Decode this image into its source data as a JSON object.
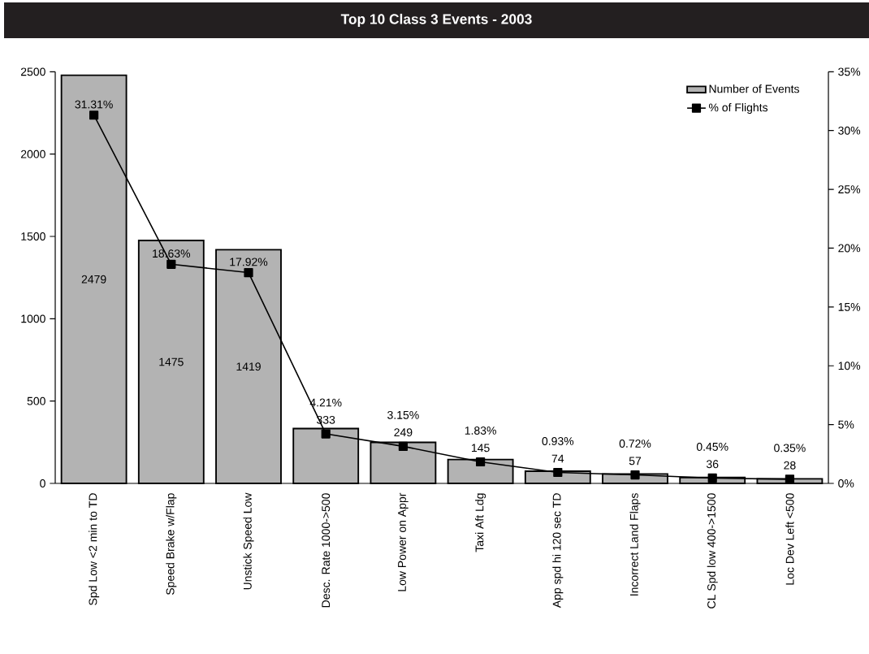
{
  "chart_data": {
    "type": "bar",
    "title": "Top 10 Class 3 Events - 2003",
    "categories": [
      "Spd Low <2 min to TD",
      "Speed Brake w/Flap",
      "Unstick Speed Low",
      "Desc. Rate 1000->500",
      "Low Power on Appr",
      "Taxi Aft Ldg",
      "App spd hi 120 sec TD",
      "Incorrect Land Flaps",
      "CL Spd low 400->1500",
      "Loc Dev Left <500"
    ],
    "series": [
      {
        "name": "Number of Events",
        "color": "#b3b3b3",
        "values": [
          2479,
          1475,
          1419,
          333,
          249,
          145,
          74,
          57,
          36,
          28
        ],
        "value_labels": [
          "2479",
          "1475",
          "1419",
          "333",
          "249",
          "145",
          "74",
          "57",
          "36",
          "28"
        ]
      },
      {
        "name": "% of Flights",
        "type": "line",
        "axis": "y2",
        "color": "#000000",
        "marker": "square",
        "values": [
          31.31,
          18.63,
          17.92,
          4.21,
          3.15,
          1.83,
          0.93,
          0.72,
          0.45,
          0.35
        ],
        "value_labels": [
          "31.31%",
          "18.63%",
          "17.92%",
          "4.21%",
          "3.15%",
          "1.83%",
          "0.93%",
          "0.72%",
          "0.45%",
          "0.35%"
        ]
      }
    ],
    "ylim": [
      0,
      2500
    ],
    "yticks": [
      0,
      500,
      1000,
      1500,
      2000,
      2500
    ],
    "y2lim": [
      0,
      35
    ],
    "y2ticks": [
      {
        "value": 0,
        "label": "0%"
      },
      {
        "value": 5,
        "label": "5%"
      },
      {
        "value": 10,
        "label": "10%"
      },
      {
        "value": 15,
        "label": "15%"
      },
      {
        "value": 20,
        "label": "20%"
      },
      {
        "value": 25,
        "label": "25%"
      },
      {
        "value": 30,
        "label": "30%"
      },
      {
        "value": 35,
        "label": "35%"
      }
    ],
    "legend": "top right",
    "grid": false
  }
}
